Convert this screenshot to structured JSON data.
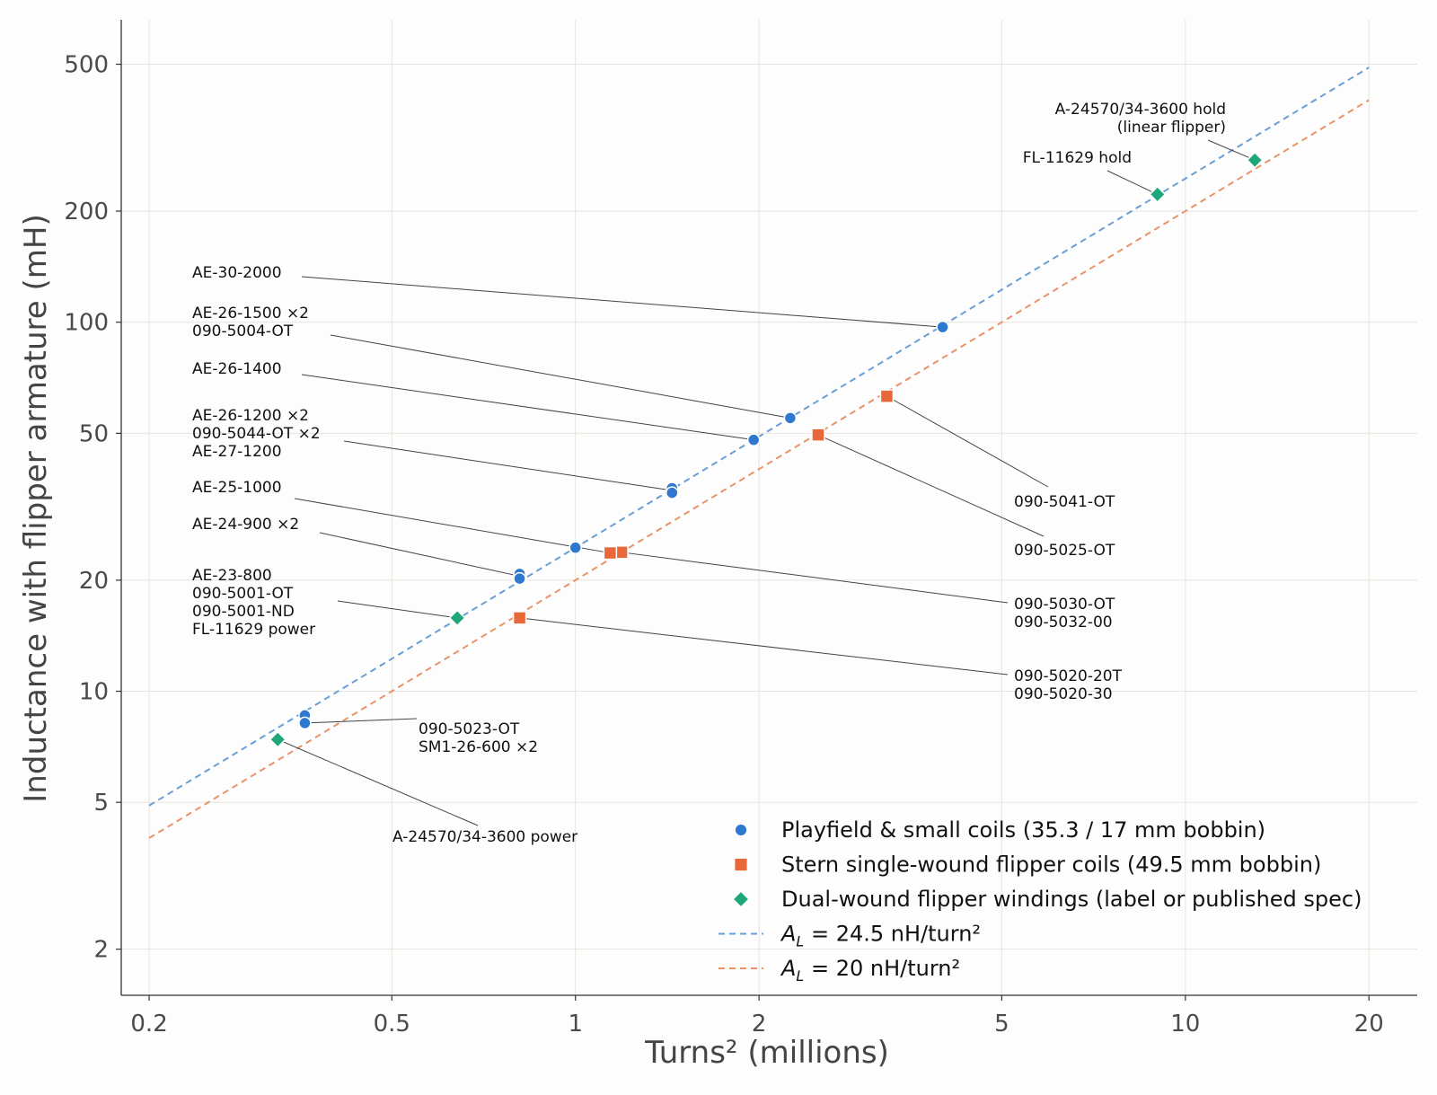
{
  "chart_data": {
    "type": "scatter",
    "title": "",
    "xlabel": "Turns² (millions)",
    "ylabel": "Inductance with flipper armature (mH)",
    "x_scale": "log",
    "y_scale": "log",
    "xlim": [
      0.18,
      24
    ],
    "ylim": [
      1.5,
      660
    ],
    "x_ticks": [
      0.2,
      0.5,
      1,
      2,
      5,
      10,
      20
    ],
    "x_tick_labels": [
      "0.2",
      "0.5",
      "1",
      "2",
      "5",
      "10",
      "20"
    ],
    "y_ticks": [
      2,
      5,
      10,
      20,
      50,
      100,
      200,
      500
    ],
    "y_tick_labels": [
      "2",
      "5",
      "10",
      "20",
      "50",
      "100",
      "200",
      "500"
    ],
    "grid": true,
    "legend_position": "lower-right",
    "colors": {
      "playfield": "#2f78cf",
      "stern": "#e8683a",
      "dual": "#1fa67a",
      "fit245": "#6a9fd3",
      "fit20": "#e8946a"
    },
    "series": [
      {
        "name": "Playfield & small coils (35.3 / 17 mm bobbin)",
        "marker": "circle",
        "color": "#2f78cf",
        "points": [
          {
            "x": 4.0,
            "y": 97
          },
          {
            "x": 2.25,
            "y": 55
          },
          {
            "x": 1.96,
            "y": 48
          },
          {
            "x": 1.44,
            "y": 35.5
          },
          {
            "x": 1.44,
            "y": 34.5
          },
          {
            "x": 1.0,
            "y": 24.5
          },
          {
            "x": 0.81,
            "y": 20.8
          },
          {
            "x": 0.81,
            "y": 20.2
          },
          {
            "x": 0.36,
            "y": 8.6
          },
          {
            "x": 0.36,
            "y": 8.2
          }
        ]
      },
      {
        "name": "Stern single-wound flipper coils (49.5 mm bobbin)",
        "marker": "square",
        "color": "#e8683a",
        "points": [
          {
            "x": 3.24,
            "y": 63
          },
          {
            "x": 2.5,
            "y": 49.5
          },
          {
            "x": 1.19,
            "y": 23.8
          },
          {
            "x": 1.14,
            "y": 23.7
          },
          {
            "x": 0.81,
            "y": 15.8
          }
        ]
      },
      {
        "name": "Dual-wound flipper windings (label or published spec)",
        "marker": "diamond",
        "color": "#1fa67a",
        "points": [
          {
            "x": 13.0,
            "y": 275
          },
          {
            "x": 9.0,
            "y": 222
          },
          {
            "x": 0.64,
            "y": 15.8
          },
          {
            "x": 0.325,
            "y": 7.4
          }
        ]
      }
    ],
    "fit_lines": [
      {
        "name": "= 24.5 nH/turn²",
        "al_nh": 24.5,
        "x": [
          0.2,
          20
        ],
        "color": "#6a9fd3"
      },
      {
        "name": "= 20 nH/turn²",
        "al_nh": 20,
        "x": [
          0.2,
          20
        ],
        "color": "#e8946a"
      }
    ],
    "legend_symbol": "A",
    "legend_subscript": "L",
    "annotations": [
      {
        "lines": [
          "A-24570/34-3600 hold",
          "(linear flipper)"
        ],
        "anchor": "end",
        "target": {
          "x": 13.0,
          "y": 275
        }
      },
      {
        "lines": [
          "FL-11629 hold"
        ],
        "anchor": "end",
        "target": {
          "x": 9.0,
          "y": 222
        }
      },
      {
        "lines": [
          "AE-30-2000"
        ],
        "anchor": "start",
        "target": {
          "x": 4.0,
          "y": 97
        }
      },
      {
        "lines": [
          "AE-26-1500 ×2",
          "090-5004-OT"
        ],
        "anchor": "start",
        "target": {
          "x": 2.25,
          "y": 55
        }
      },
      {
        "lines": [
          "AE-26-1400"
        ],
        "anchor": "start",
        "target": {
          "x": 1.96,
          "y": 48
        }
      },
      {
        "lines": [
          "AE-26-1200 ×2",
          "090-5044-OT ×2",
          "AE-27-1200"
        ],
        "anchor": "start",
        "target": {
          "x": 1.44,
          "y": 35
        }
      },
      {
        "lines": [
          "AE-25-1000"
        ],
        "anchor": "start",
        "target": {
          "x": 1.14,
          "y": 23.7
        }
      },
      {
        "lines": [
          "AE-24-900 ×2"
        ],
        "anchor": "start",
        "target": {
          "x": 0.81,
          "y": 20.5
        }
      },
      {
        "lines": [
          "AE-23-800",
          "090-5001-OT",
          "090-5001-ND",
          "FL-11629 power"
        ],
        "anchor": "start",
        "target": {
          "x": 0.64,
          "y": 15.8
        }
      },
      {
        "lines": [
          "090-5041-OT"
        ],
        "anchor": "start",
        "target": {
          "x": 3.24,
          "y": 63
        }
      },
      {
        "lines": [
          "090-5025-OT"
        ],
        "anchor": "start",
        "target": {
          "x": 2.5,
          "y": 49.5
        }
      },
      {
        "lines": [
          "090-5030-OT",
          "090-5032-00"
        ],
        "anchor": "start",
        "target": {
          "x": 1.19,
          "y": 23.8
        }
      },
      {
        "lines": [
          "090-5020-20T",
          "090-5020-30"
        ],
        "anchor": "start",
        "target": {
          "x": 0.81,
          "y": 15.8
        }
      },
      {
        "lines": [
          "090-5023-OT",
          "SM1-26-600 ×2"
        ],
        "anchor": "start",
        "target": {
          "x": 0.36,
          "y": 8.2
        }
      },
      {
        "lines": [
          "A-24570/34-3600 power"
        ],
        "anchor": "start",
        "target": {
          "x": 0.325,
          "y": 7.4
        }
      }
    ]
  }
}
